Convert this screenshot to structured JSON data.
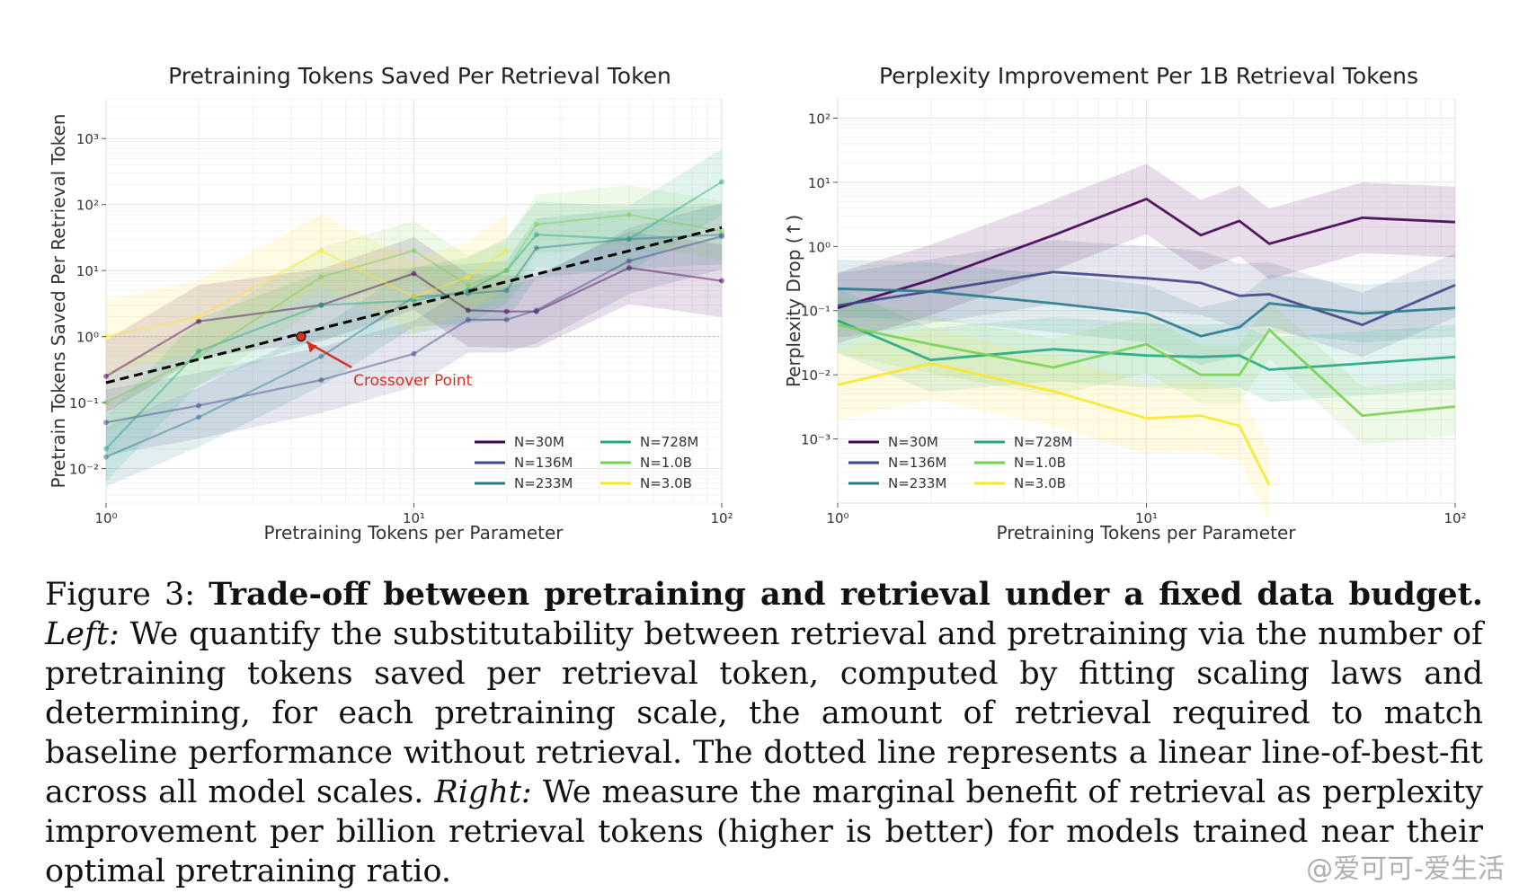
{
  "chart_data": [
    {
      "id": "left",
      "type": "line",
      "title": "Pretraining Tokens Saved Per Retrieval Token",
      "xlabel": "Pretraining Tokens per Parameter",
      "ylabel": "Pretrain Tokens Saved Per Retrieval Token",
      "xscale": "log",
      "yscale": "log",
      "xlim": [
        1,
        100
      ],
      "ylim": [
        0.003,
        4000
      ],
      "xticks": [
        1,
        10,
        100
      ],
      "yticks": [
        0.01,
        0.1,
        1,
        10,
        100,
        1000
      ],
      "reference_line": 1,
      "legend_loc": "lower-right",
      "series": [
        {
          "name": "N=30M",
          "color": "#440154",
          "points": [
            [
              1,
              0.25
            ],
            [
              2,
              1.7
            ],
            [
              5,
              3
            ],
            [
              10,
              9
            ],
            [
              15,
              2.5
            ],
            [
              20,
              2.4
            ],
            [
              25,
              2.4
            ],
            [
              50,
              11
            ],
            [
              100,
              7
            ]
          ]
        },
        {
          "name": "N=136M",
          "color": "#414487",
          "points": [
            [
              1,
              0.05
            ],
            [
              2,
              0.09
            ],
            [
              5,
              0.22
            ],
            [
              10,
              0.55
            ],
            [
              15,
              1.8
            ],
            [
              20,
              1.8
            ],
            [
              25,
              2.5
            ],
            [
              50,
              14
            ],
            [
              100,
              33
            ]
          ]
        },
        {
          "name": "N=233M",
          "color": "#2a788e",
          "points": [
            [
              1,
              0.015
            ],
            [
              2,
              0.06
            ],
            [
              5,
              0.5
            ],
            [
              10,
              4
            ],
            [
              15,
              4.5
            ],
            [
              20,
              5
            ],
            [
              25,
              22
            ],
            [
              50,
              30
            ],
            [
              100,
              35
            ]
          ]
        },
        {
          "name": "N=728M",
          "color": "#22a884",
          "points": [
            [
              1,
              0.02
            ],
            [
              2,
              0.6
            ],
            [
              5,
              3
            ],
            [
              10,
              3.5
            ],
            [
              15,
              5
            ],
            [
              20,
              10
            ],
            [
              25,
              35
            ],
            [
              50,
              30
            ],
            [
              100,
              220
            ]
          ]
        },
        {
          "name": "N=1.0B",
          "color": "#7ad151",
          "points": [
            [
              1,
              0.1
            ],
            [
              2,
              0.5
            ],
            [
              5,
              8
            ],
            [
              10,
              20
            ],
            [
              15,
              6
            ],
            [
              20,
              10
            ],
            [
              25,
              50
            ],
            [
              50,
              70
            ],
            [
              100,
              40
            ]
          ]
        },
        {
          "name": "N=3.0B",
          "color": "#fde725",
          "points": [
            [
              1,
              1
            ],
            [
              2,
              2
            ],
            [
              5,
              20
            ],
            [
              10,
              4
            ],
            [
              15,
              8
            ],
            [
              20,
              20
            ]
          ]
        }
      ],
      "fit_line": {
        "style": "dashed",
        "points": [
          [
            1,
            0.2
          ],
          [
            100,
            45
          ]
        ]
      },
      "annotation": {
        "text": "Crossover Point",
        "x": 4.3,
        "y": 1.0,
        "text_x": 6.8,
        "text_y": 0.22,
        "color": "#d7301f"
      }
    },
    {
      "id": "right",
      "type": "line",
      "title": "Perplexity Improvement Per 1B Retrieval Tokens",
      "xlabel": "Pretraining Tokens per Parameter",
      "ylabel": "Perplexity Drop (↑)",
      "xscale": "log",
      "yscale": "log",
      "xlim": [
        1,
        100
      ],
      "ylim": [
        0.0001,
        200
      ],
      "xticks": [
        1,
        10,
        100
      ],
      "yticks": [
        0.001,
        0.01,
        0.1,
        1,
        10,
        100
      ],
      "legend_loc": "lower-left",
      "series": [
        {
          "name": "N=30M",
          "color": "#440154",
          "points": [
            [
              1,
              0.11
            ],
            [
              2,
              0.3
            ],
            [
              5,
              1.5
            ],
            [
              10,
              5.5
            ],
            [
              15,
              1.5
            ],
            [
              20,
              2.5
            ],
            [
              25,
              1.1
            ],
            [
              50,
              2.8
            ],
            [
              100,
              2.4
            ]
          ]
        },
        {
          "name": "N=136M",
          "color": "#414487",
          "points": [
            [
              1,
              0.12
            ],
            [
              2,
              0.2
            ],
            [
              5,
              0.4
            ],
            [
              10,
              0.32
            ],
            [
              15,
              0.27
            ],
            [
              20,
              0.17
            ],
            [
              25,
              0.18
            ],
            [
              50,
              0.06
            ],
            [
              100,
              0.25
            ]
          ]
        },
        {
          "name": "N=233M",
          "color": "#2a788e",
          "points": [
            [
              1,
              0.22
            ],
            [
              2,
              0.2
            ],
            [
              5,
              0.13
            ],
            [
              10,
              0.09
            ],
            [
              15,
              0.04
            ],
            [
              20,
              0.055
            ],
            [
              25,
              0.13
            ],
            [
              50,
              0.09
            ],
            [
              100,
              0.11
            ]
          ]
        },
        {
          "name": "N=728M",
          "color": "#22a884",
          "points": [
            [
              1,
              0.07
            ],
            [
              2,
              0.017
            ],
            [
              5,
              0.025
            ],
            [
              10,
              0.02
            ],
            [
              15,
              0.019
            ],
            [
              20,
              0.02
            ],
            [
              25,
              0.012
            ],
            [
              50,
              0.015
            ],
            [
              100,
              0.019
            ]
          ]
        },
        {
          "name": "N=1.0B",
          "color": "#7ad151",
          "points": [
            [
              1,
              0.06
            ],
            [
              2,
              0.03
            ],
            [
              5,
              0.013
            ],
            [
              10,
              0.03
            ],
            [
              15,
              0.01
            ],
            [
              20,
              0.01
            ],
            [
              25,
              0.05
            ],
            [
              50,
              0.0023
            ],
            [
              100,
              0.0032
            ]
          ]
        },
        {
          "name": "N=3.0B",
          "color": "#fde725",
          "points": [
            [
              1,
              0.007
            ],
            [
              2,
              0.015
            ],
            [
              5,
              0.0055
            ],
            [
              10,
              0.0021
            ],
            [
              15,
              0.0023
            ],
            [
              20,
              0.0016
            ],
            [
              25,
              0.00019
            ]
          ]
        }
      ]
    }
  ],
  "caption": {
    "label": "Figure 3:",
    "bold": "Trade-off between pretraining and retrieval under a fixed data budget.",
    "left_tag": "Left:",
    "left_text": "We quantify the substitutability between retrieval and pretraining via the number of pretraining tokens saved per retrieval token, computed by fitting scaling laws and determining, for each pretraining scale, the amount of retrieval required to match baseline performance without retrieval. The dotted line represents a linear line-of-best-fit across all model scales.",
    "right_tag": "Right:",
    "right_text": "We measure the marginal benefit of retrieval as perplexity improvement per billion retrieval tokens (higher is better) for models trained near their optimal pretraining ratio."
  },
  "watermark": "@爱可可-爱生活"
}
